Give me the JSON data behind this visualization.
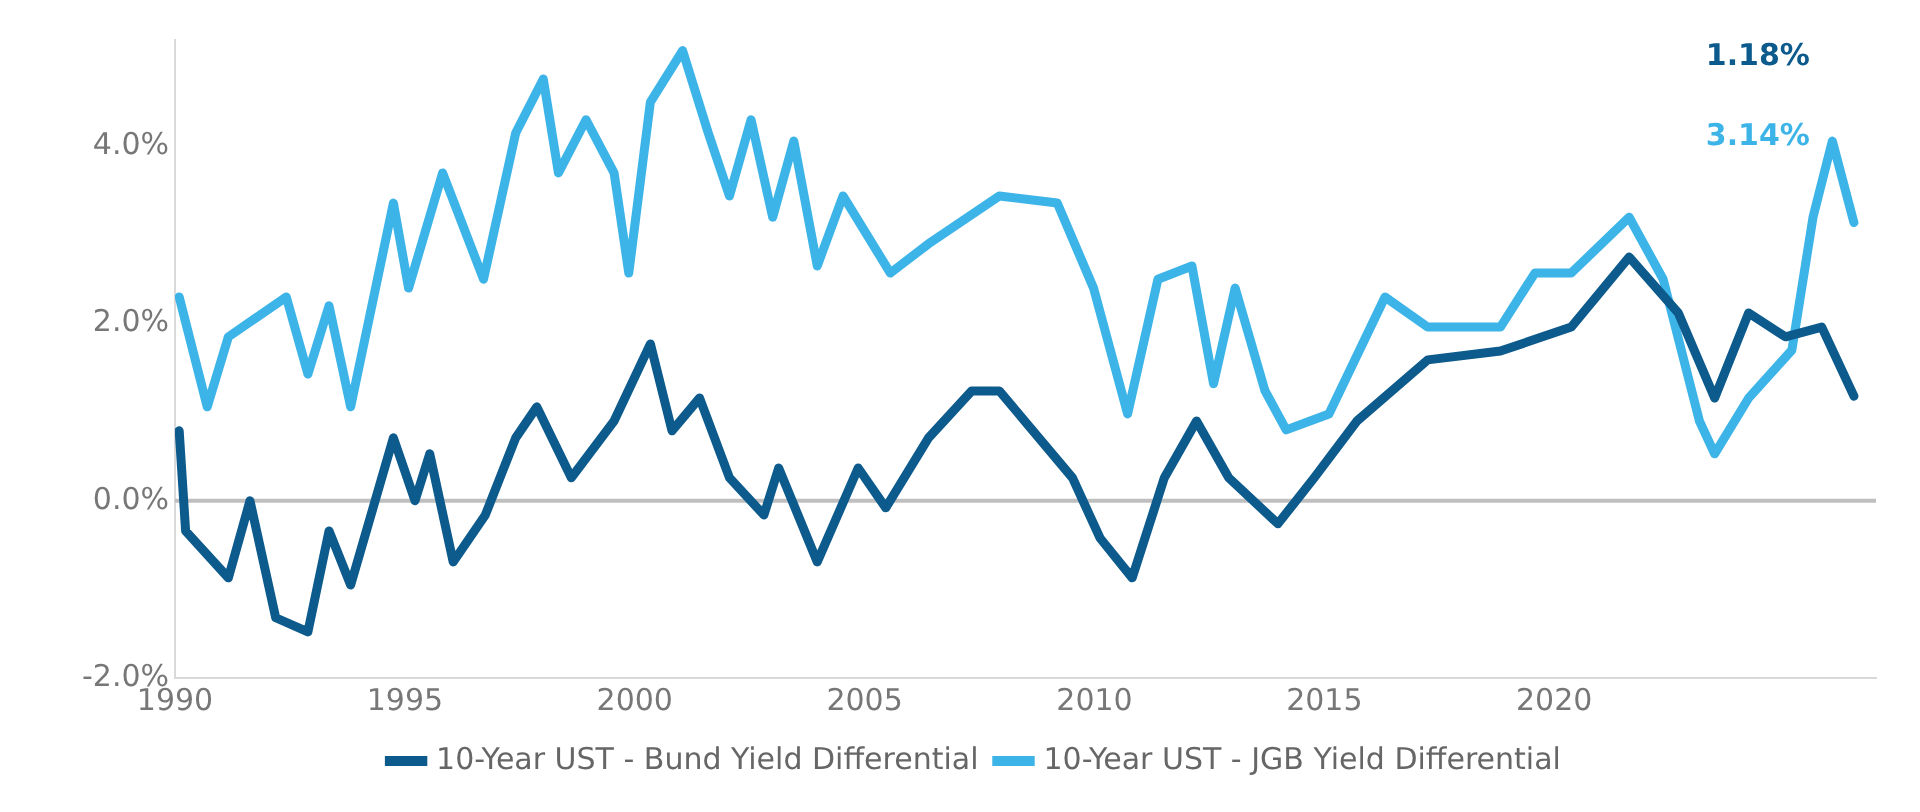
{
  "chart_data": {
    "type": "line",
    "xlim": [
      1990,
      2027
    ],
    "xticks": [
      1990,
      1995,
      2000,
      2005,
      2010,
      2015,
      2020
    ],
    "ylim": [
      -2.0,
      5.2
    ],
    "yticks": [
      {
        "value": -2,
        "label": "-2.0%"
      },
      {
        "value": 0,
        "label": "0.0%"
      },
      {
        "value": 2,
        "label": "2.0%"
      },
      {
        "value": 4,
        "label": "4.0%"
      }
    ],
    "grid": false,
    "legend": "bottom",
    "marker": "none",
    "line_style": "solid",
    "ref_lines": [
      {
        "axis": "y",
        "value": 0,
        "color": "#bfbfbf"
      }
    ],
    "annotations": [
      "1.18%",
      "3.14%"
    ],
    "series": [
      {
        "name": "10-Year UST - Bund Yield Differential",
        "color": "#0d5a8c",
        "x": [
          1990.09,
          1990.23,
          1991.16,
          1991.63,
          1992.19,
          1992.89,
          1993.35,
          1993.82,
          1994.75,
          1995.22,
          1995.54,
          1996.05,
          1996.75,
          1997.41,
          1997.87,
          1998.62,
          1999.55,
          2000.34,
          2000.81,
          2001.41,
          2002.06,
          2002.81,
          2003.13,
          2003.97,
          2004.86,
          2005.46,
          2006.39,
          2007.33,
          2007.93,
          2009.52,
          2010.12,
          2010.82,
          2011.52,
          2012.22,
          2012.92,
          2013.99,
          2014.78,
          2015.71,
          2017.25,
          2018.83,
          2020.37,
          2021.63,
          2022.7,
          2023.49,
          2024.23,
          2025.03,
          2025.82,
          2026.52
        ],
        "values": [
          0.79,
          -0.34,
          -0.87,
          0,
          -1.32,
          -1.48,
          -0.34,
          -0.95,
          0.71,
          0,
          0.53,
          -0.69,
          -0.16,
          0.71,
          1.06,
          0.26,
          0.9,
          1.77,
          0.79,
          1.16,
          0.26,
          -0.16,
          0.37,
          -0.69,
          0.37,
          -0.08,
          0.71,
          1.24,
          1.24,
          0.26,
          -0.42,
          -0.87,
          0.26,
          0.9,
          0.26,
          -0.26,
          0.26,
          0.9,
          1.59,
          1.69,
          1.96,
          2.75,
          2.12,
          1.16,
          2.12,
          1.85,
          1.96,
          1.18
        ]
      },
      {
        "name": "10-Year UST - JGB Yield Differential",
        "color": "#3db4e8",
        "x": [
          1990.09,
          1990.7,
          1991.16,
          1992.42,
          1992.89,
          1993.35,
          1993.82,
          1994.75,
          1995.08,
          1995.82,
          1996.71,
          1997.41,
          1998.01,
          1998.34,
          1998.94,
          1999.55,
          1999.87,
          2000.34,
          2001.04,
          2001.6,
          2002.06,
          2002.53,
          2003.0,
          2003.46,
          2003.97,
          2004.53,
          2005.56,
          2006.39,
          2007.93,
          2009.19,
          2009.98,
          2010.72,
          2011.38,
          2012.12,
          2012.59,
          2013.06,
          2013.71,
          2014.17,
          2015.1,
          2016.32,
          2017.25,
          2018.83,
          2019.58,
          2020.37,
          2021.63,
          2022.37,
          2023.16,
          2023.49,
          2024.23,
          2025.17,
          2025.63,
          2026.05,
          2026.52
        ],
        "values": [
          2.3,
          1.06,
          1.85,
          2.3,
          1.43,
          2.2,
          1.06,
          3.36,
          2.4,
          3.7,
          2.5,
          4.15,
          4.76,
          3.7,
          4.3,
          3.7,
          2.57,
          4.5,
          5.08,
          4.15,
          3.44,
          4.3,
          3.2,
          4.06,
          2.65,
          3.44,
          2.57,
          2.9,
          3.44,
          3.36,
          2.4,
          0.98,
          2.5,
          2.65,
          1.32,
          2.4,
          1.24,
          0.8,
          0.98,
          2.3,
          1.96,
          1.96,
          2.57,
          2.57,
          3.2,
          2.5,
          0.9,
          0.53,
          1.16,
          1.7,
          3.2,
          4.06,
          3.14
        ]
      }
    ]
  }
}
